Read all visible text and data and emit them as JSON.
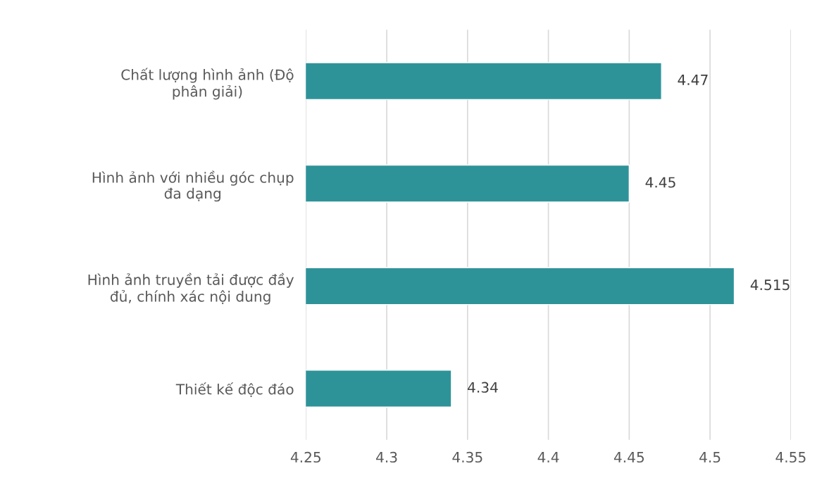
{
  "chart_data": {
    "type": "bar",
    "orientation": "horizontal",
    "categories": [
      "Chất lượng hình ảnh (Độ\nphân giải)",
      "Hình ảnh với nhiều góc chụp\nđa dạng",
      "Hình ảnh truyền tải được đầy\nđủ, chính xác nội dung",
      "Thiết kế độc đáo"
    ],
    "values": [
      4.47,
      4.45,
      4.515,
      4.34
    ],
    "color": "#2e9399",
    "xlim": [
      4.25,
      4.55
    ],
    "xticks": [
      4.25,
      4.3,
      4.35,
      4.4,
      4.45,
      4.5,
      4.55
    ],
    "grid": "x",
    "data_labels": true
  }
}
